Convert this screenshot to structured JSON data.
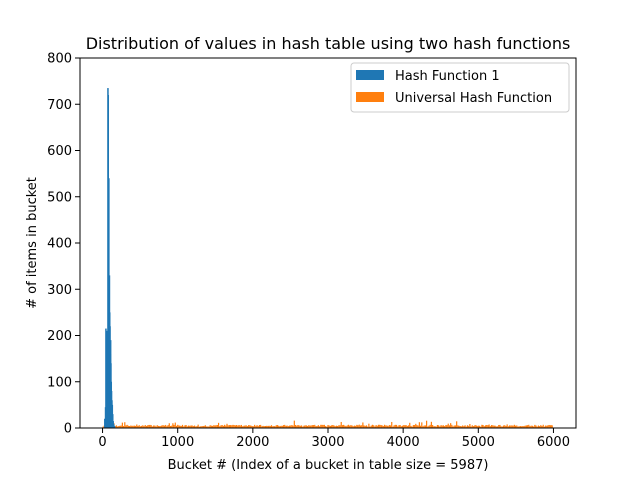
{
  "chart_data": {
    "type": "bar",
    "title": "Distribution of values in hash table using two hash functions",
    "xlabel": "Bucket # (Index of a bucket in table size = 5987)",
    "ylabel": "# of items in bucket",
    "xlim": [
      -300,
      6300
    ],
    "ylim": [
      0,
      800
    ],
    "x_ticks": [
      0,
      1000,
      2000,
      3000,
      4000,
      5000,
      6000
    ],
    "y_ticks": [
      0,
      100,
      200,
      300,
      400,
      500,
      600,
      700,
      800
    ],
    "table_size": 5987,
    "legend_position": "upper-right",
    "grid": false,
    "series": [
      {
        "name": "Hash Function 1",
        "color": "#1f77b4",
        "points": [
          [
            20,
            20
          ],
          [
            30,
            45
          ],
          [
            35,
            215
          ],
          [
            42,
            30
          ],
          [
            48,
            90
          ],
          [
            52,
            210
          ],
          [
            58,
            180
          ],
          [
            62,
            735
          ],
          [
            66,
            720
          ],
          [
            70,
            470
          ],
          [
            74,
            540
          ],
          [
            78,
            300
          ],
          [
            82,
            330
          ],
          [
            86,
            250
          ],
          [
            90,
            220
          ],
          [
            94,
            160
          ],
          [
            98,
            190
          ],
          [
            102,
            140
          ],
          [
            106,
            100
          ],
          [
            110,
            80
          ],
          [
            115,
            60
          ],
          [
            120,
            50
          ],
          [
            126,
            30
          ],
          [
            132,
            15
          ],
          [
            140,
            8
          ],
          [
            150,
            4
          ]
        ]
      },
      {
        "name": "Universal Hash Function",
        "color": "#ff7f0e",
        "x_start": 0,
        "x_end": 5987,
        "typical_value": 5,
        "max_value": 16
      }
    ]
  }
}
